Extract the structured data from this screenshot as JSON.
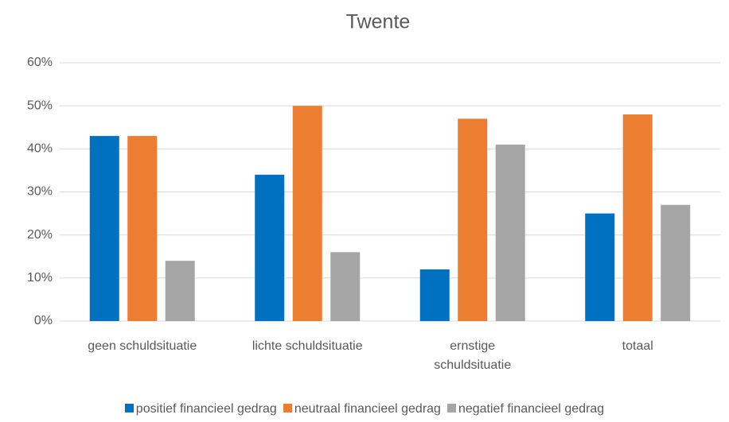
{
  "chart_data": {
    "type": "bar",
    "title": "Twente",
    "categories": [
      "geen schuldsituatie",
      "lichte schuldsituatie",
      "ernstige schuldsituatie",
      "totaal"
    ],
    "series": [
      {
        "name": "positief financieel gedrag",
        "color": "#0070c0",
        "values": [
          43,
          34,
          12,
          25
        ]
      },
      {
        "name": "neutraal financieel gedrag",
        "color": "#ed7d31",
        "values": [
          43,
          50,
          47,
          48
        ]
      },
      {
        "name": "negatief financieel gedrag",
        "color": "#a5a5a5",
        "values": [
          14,
          16,
          41,
          27
        ]
      }
    ],
    "ylim": [
      0,
      60
    ],
    "yticks": [
      {
        "value": 0,
        "label": "0%"
      },
      {
        "value": 10,
        "label": "10%"
      },
      {
        "value": 20,
        "label": "20%"
      },
      {
        "value": 30,
        "label": "30%"
      },
      {
        "value": 40,
        "label": "40%"
      },
      {
        "value": 50,
        "label": "50%"
      },
      {
        "value": 60,
        "label": "60%"
      }
    ],
    "grid": true,
    "legend": "bottom"
  }
}
